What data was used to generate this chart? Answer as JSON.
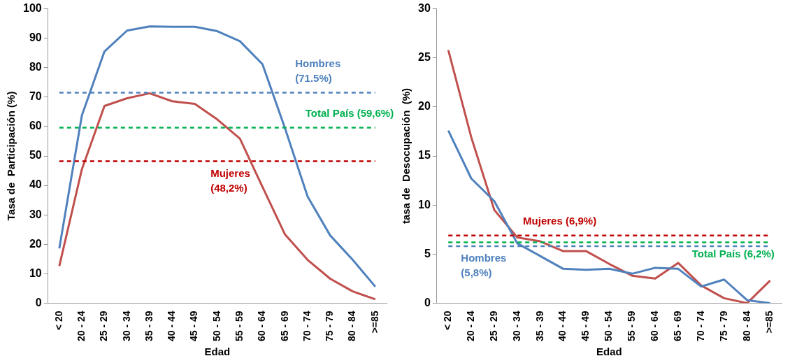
{
  "chart_data": [
    {
      "type": "line",
      "xlabel": "Edad",
      "ylabel": "Tasa de  Participación (%)",
      "categories": [
        "< 20",
        "20 - 24",
        "25 - 29",
        "30 - 34",
        "35 - 39",
        "40 - 44",
        "45 - 49",
        "50 - 54",
        "55 - 59",
        "60 - 64",
        "65 - 69",
        "70 - 74",
        "75 - 79",
        "80 - 84",
        ">=85"
      ],
      "series": [
        {
          "color": "#4f81bd",
          "values": [
            18.6,
            63.8,
            85.5,
            92.6,
            94.0,
            93.9,
            93.9,
            92.4,
            89.0,
            81.2,
            59.4,
            36.2,
            23.0,
            14.7,
            5.6
          ]
        },
        {
          "color": "#c0504d",
          "values": [
            12.6,
            45.5,
            67.0,
            69.6,
            71.3,
            68.6,
            67.7,
            62.4,
            55.9,
            39.5,
            23.3,
            14.7,
            8.3,
            4.0,
            1.3
          ]
        }
      ],
      "ref_lines": [
        {
          "axis": "y",
          "value": 71.5,
          "label": "Hombres (71.5%)",
          "color": "#4f81bd",
          "line_style": "dashed"
        },
        {
          "axis": "y",
          "value": 59.6,
          "label": "Total País (59,6%)",
          "color": "#00b050",
          "line_style": "dashed"
        },
        {
          "axis": "y",
          "value": 48.2,
          "label": "Mujeres (48,2%)",
          "color": "#c00000",
          "line_style": "dashed"
        }
      ],
      "ylim": [
        0,
        100
      ],
      "yticks": [
        0,
        10,
        20,
        30,
        40,
        50,
        60,
        70,
        80,
        90,
        100
      ],
      "grid": false,
      "legend": false,
      "marker": "none"
    },
    {
      "type": "line",
      "xlabel": "Edad",
      "ylabel": "tasa de  Desocupación  (%)",
      "categories": [
        "< 20",
        "20 - 24",
        "25 - 29",
        "30 - 34",
        "35 - 39",
        "40 - 44",
        "45 - 49",
        "50 - 54",
        "55 - 59",
        "60 - 64",
        "65 - 69",
        "70 - 74",
        "75 - 79",
        "80 - 84",
        ">=85"
      ],
      "series": [
        {
          "color": "#4f81bd",
          "values": [
            17.6,
            12.7,
            10.4,
            6.1,
            4.8,
            3.5,
            3.4,
            3.5,
            3.0,
            3.6,
            3.5,
            1.7,
            2.4,
            0.3,
            0.0
          ]
        },
        {
          "color": "#c0504d",
          "values": [
            25.8,
            16.9,
            9.5,
            6.7,
            6.3,
            5.3,
            5.3,
            4.0,
            2.8,
            2.5,
            4.1,
            1.8,
            0.5,
            0.0,
            2.3
          ]
        }
      ],
      "ref_lines": [
        {
          "axis": "y",
          "value": 6.9,
          "label": "Mujeres (6,9%)",
          "color": "#c00000",
          "line_style": "dashed"
        },
        {
          "axis": "y",
          "value": 6.2,
          "label": "Total País (6,2%)",
          "color": "#00b050",
          "line_style": "dashed"
        },
        {
          "axis": "y",
          "value": 5.8,
          "label": "Hombres (5,8%)",
          "color": "#4f81bd",
          "line_style": "dashed"
        }
      ],
      "ylim": [
        0,
        30
      ],
      "yticks": [
        0,
        5,
        10,
        15,
        20,
        25,
        30
      ],
      "grid": false,
      "legend": false,
      "marker": "none"
    }
  ]
}
